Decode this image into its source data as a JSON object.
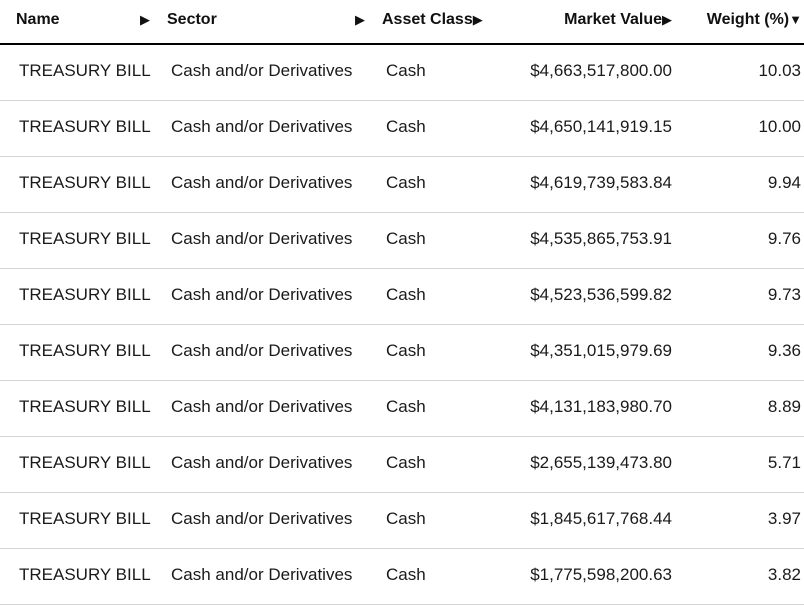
{
  "table": {
    "columns": [
      {
        "label": "Name",
        "sort_icon": "triangle-right-icon",
        "sort_glyph": "▶"
      },
      {
        "label": "Sector",
        "sort_icon": "triangle-right-icon",
        "sort_glyph": "▶"
      },
      {
        "label": "Asset Class",
        "sort_icon": "triangle-right-icon",
        "sort_glyph": "▶"
      },
      {
        "label": "Market Value",
        "sort_icon": "triangle-right-icon",
        "sort_glyph": "▶"
      },
      {
        "label": "Weight (%)",
        "sort_icon": "triangle-down-icon",
        "sort_glyph": "▼",
        "sorted": "descending"
      }
    ],
    "rows": [
      {
        "name": "TREASURY BILL",
        "sector": "Cash and/or Derivatives",
        "asset_class": "Cash",
        "market_value": "$4,663,517,800.00",
        "weight": "10.03"
      },
      {
        "name": "TREASURY BILL",
        "sector": "Cash and/or Derivatives",
        "asset_class": "Cash",
        "market_value": "$4,650,141,919.15",
        "weight": "10.00"
      },
      {
        "name": "TREASURY BILL",
        "sector": "Cash and/or Derivatives",
        "asset_class": "Cash",
        "market_value": "$4,619,739,583.84",
        "weight": "9.94"
      },
      {
        "name": "TREASURY BILL",
        "sector": "Cash and/or Derivatives",
        "asset_class": "Cash",
        "market_value": "$4,535,865,753.91",
        "weight": "9.76"
      },
      {
        "name": "TREASURY BILL",
        "sector": "Cash and/or Derivatives",
        "asset_class": "Cash",
        "market_value": "$4,523,536,599.82",
        "weight": "9.73"
      },
      {
        "name": "TREASURY BILL",
        "sector": "Cash and/or Derivatives",
        "asset_class": "Cash",
        "market_value": "$4,351,015,979.69",
        "weight": "9.36"
      },
      {
        "name": "TREASURY BILL",
        "sector": "Cash and/or Derivatives",
        "asset_class": "Cash",
        "market_value": "$4,131,183,980.70",
        "weight": "8.89"
      },
      {
        "name": "TREASURY BILL",
        "sector": "Cash and/or Derivatives",
        "asset_class": "Cash",
        "market_value": "$2,655,139,473.80",
        "weight": "5.71"
      },
      {
        "name": "TREASURY BILL",
        "sector": "Cash and/or Derivatives",
        "asset_class": "Cash",
        "market_value": "$1,845,617,768.44",
        "weight": "3.97"
      },
      {
        "name": "TREASURY BILL",
        "sector": "Cash and/or Derivatives",
        "asset_class": "Cash",
        "market_value": "$1,775,598,200.63",
        "weight": "3.82"
      }
    ]
  }
}
